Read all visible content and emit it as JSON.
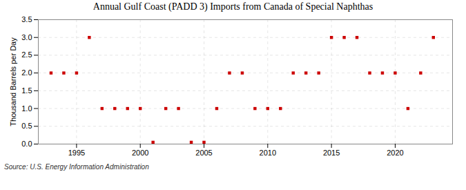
{
  "chart_data": {
    "type": "scatter",
    "title": "Annual Gulf Coast (PADD 3) Imports from Canada of Special Naphthas",
    "ylabel": "Thousand Barrels per Day",
    "source": "Source: U.S. Energy Information Administration",
    "x": [
      1993,
      1994,
      1995,
      1996,
      1997,
      1998,
      1999,
      2000,
      2001,
      2002,
      2003,
      2004,
      2005,
      2006,
      2007,
      2008,
      2009,
      2010,
      2011,
      2012,
      2013,
      2014,
      2015,
      2016,
      2017,
      2018,
      2019,
      2020,
      2021,
      2022,
      2023
    ],
    "values": [
      2.0,
      2.0,
      2.0,
      3.0,
      1.0,
      1.0,
      1.0,
      1.0,
      0.05,
      1.0,
      1.0,
      0.05,
      0.05,
      1.0,
      2.0,
      2.0,
      1.0,
      1.0,
      1.0,
      2.0,
      2.0,
      2.0,
      3.0,
      3.0,
      3.0,
      2.0,
      2.0,
      2.0,
      1.0,
      2.0,
      3.0
    ],
    "color": "#cc0000",
    "marker": "square",
    "xlim": [
      1992,
      2024.5
    ],
    "xticks": [
      1995,
      2000,
      2005,
      2010,
      2015,
      2020
    ],
    "ylim": [
      0,
      3.5
    ],
    "yticks": [
      {
        "value": 0,
        "label": "0.0"
      },
      0.5,
      {
        "value": 1,
        "label": "1.0"
      },
      1.5,
      {
        "value": 2,
        "label": "2.0"
      },
      2.5,
      {
        "value": 3,
        "label": "3.0"
      },
      3.5
    ],
    "grid": true
  }
}
